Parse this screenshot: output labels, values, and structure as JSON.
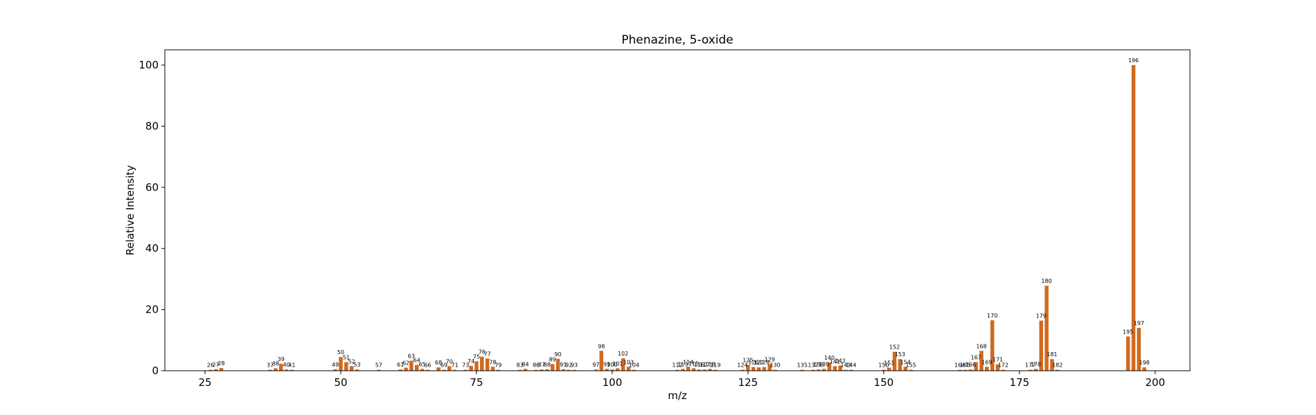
{
  "chart_data": {
    "type": "bar",
    "title": "Phenazine, 5-oxide",
    "xlabel": "m/z",
    "ylabel": "Relative Intensity",
    "xlim": [
      17.6,
      206.4
    ],
    "ylim": [
      0,
      105
    ],
    "xticks": [
      25,
      50,
      75,
      100,
      125,
      150,
      175,
      200
    ],
    "yticks": [
      0,
      20,
      40,
      60,
      80,
      100
    ],
    "bar_color": "#d2691e",
    "peaks": [
      {
        "mz": 26,
        "intensity": 0.3
      },
      {
        "mz": 27,
        "intensity": 0.5
      },
      {
        "mz": 28,
        "intensity": 0.9
      },
      {
        "mz": 37,
        "intensity": 0.3
      },
      {
        "mz": 38,
        "intensity": 0.8
      },
      {
        "mz": 39,
        "intensity": 2.3
      },
      {
        "mz": 40,
        "intensity": 0.4
      },
      {
        "mz": 41,
        "intensity": 0.3
      },
      {
        "mz": 49,
        "intensity": 0.5
      },
      {
        "mz": 50,
        "intensity": 4.5
      },
      {
        "mz": 51,
        "intensity": 2.8
      },
      {
        "mz": 52,
        "intensity": 1.5
      },
      {
        "mz": 53,
        "intensity": 0.4
      },
      {
        "mz": 57,
        "intensity": 0.3
      },
      {
        "mz": 61,
        "intensity": 0.4
      },
      {
        "mz": 62,
        "intensity": 1.0
      },
      {
        "mz": 63,
        "intensity": 3.3
      },
      {
        "mz": 64,
        "intensity": 1.9
      },
      {
        "mz": 65,
        "intensity": 0.6
      },
      {
        "mz": 66,
        "intensity": 0.3
      },
      {
        "mz": 68,
        "intensity": 1.1
      },
      {
        "mz": 69,
        "intensity": 0.3
      },
      {
        "mz": 70,
        "intensity": 1.5
      },
      {
        "mz": 71,
        "intensity": 0.3
      },
      {
        "mz": 73,
        "intensity": 0.3
      },
      {
        "mz": 74,
        "intensity": 1.6
      },
      {
        "mz": 75,
        "intensity": 3.1
      },
      {
        "mz": 76,
        "intensity": 4.6
      },
      {
        "mz": 77,
        "intensity": 4.0
      },
      {
        "mz": 78,
        "intensity": 1.3
      },
      {
        "mz": 79,
        "intensity": 0.3
      },
      {
        "mz": 83,
        "intensity": 0.3
      },
      {
        "mz": 84,
        "intensity": 0.6
      },
      {
        "mz": 86,
        "intensity": 0.3
      },
      {
        "mz": 87,
        "intensity": 0.4
      },
      {
        "mz": 88,
        "intensity": 0.5
      },
      {
        "mz": 89,
        "intensity": 2.2
      },
      {
        "mz": 90,
        "intensity": 3.9
      },
      {
        "mz": 91,
        "intensity": 0.5
      },
      {
        "mz": 92,
        "intensity": 0.3
      },
      {
        "mz": 93,
        "intensity": 0.3
      },
      {
        "mz": 97,
        "intensity": 0.4
      },
      {
        "mz": 98,
        "intensity": 6.5
      },
      {
        "mz": 99,
        "intensity": 0.6
      },
      {
        "mz": 100,
        "intensity": 0.4
      },
      {
        "mz": 101,
        "intensity": 0.8
      },
      {
        "mz": 102,
        "intensity": 4.1
      },
      {
        "mz": 103,
        "intensity": 1.3
      },
      {
        "mz": 104,
        "intensity": 0.3
      },
      {
        "mz": 112,
        "intensity": 0.3
      },
      {
        "mz": 113,
        "intensity": 0.6
      },
      {
        "mz": 114,
        "intensity": 1.3
      },
      {
        "mz": 115,
        "intensity": 0.8
      },
      {
        "mz": 116,
        "intensity": 0.4
      },
      {
        "mz": 117,
        "intensity": 0.4
      },
      {
        "mz": 118,
        "intensity": 0.6
      },
      {
        "mz": 119,
        "intensity": 0.3
      },
      {
        "mz": 124,
        "intensity": 0.3
      },
      {
        "mz": 125,
        "intensity": 1.9
      },
      {
        "mz": 126,
        "intensity": 1.2
      },
      {
        "mz": 127,
        "intensity": 1.1
      },
      {
        "mz": 128,
        "intensity": 1.2
      },
      {
        "mz": 129,
        "intensity": 2.2
      },
      {
        "mz": 130,
        "intensity": 0.3
      },
      {
        "mz": 135,
        "intensity": 0.3
      },
      {
        "mz": 137,
        "intensity": 0.3
      },
      {
        "mz": 138,
        "intensity": 0.4
      },
      {
        "mz": 139,
        "intensity": 0.6
      },
      {
        "mz": 140,
        "intensity": 2.7
      },
      {
        "mz": 141,
        "intensity": 1.5
      },
      {
        "mz": 142,
        "intensity": 1.7
      },
      {
        "mz": 143,
        "intensity": 0.3
      },
      {
        "mz": 144,
        "intensity": 0.3
      },
      {
        "mz": 150,
        "intensity": 0.3
      },
      {
        "mz": 151,
        "intensity": 1.0
      },
      {
        "mz": 152,
        "intensity": 6.2
      },
      {
        "mz": 153,
        "intensity": 3.8
      },
      {
        "mz": 154,
        "intensity": 1.3
      },
      {
        "mz": 155,
        "intensity": 0.3
      },
      {
        "mz": 164,
        "intensity": 0.3
      },
      {
        "mz": 165,
        "intensity": 0.3
      },
      {
        "mz": 166,
        "intensity": 0.4
      },
      {
        "mz": 167,
        "intensity": 2.8
      },
      {
        "mz": 168,
        "intensity": 6.5
      },
      {
        "mz": 169,
        "intensity": 1.3
      },
      {
        "mz": 170,
        "intensity": 16.5
      },
      {
        "mz": 171,
        "intensity": 2.1
      },
      {
        "mz": 172,
        "intensity": 0.3
      },
      {
        "mz": 177,
        "intensity": 0.3
      },
      {
        "mz": 178,
        "intensity": 0.6
      },
      {
        "mz": 179,
        "intensity": 16.4
      },
      {
        "mz": 180,
        "intensity": 27.8
      },
      {
        "mz": 181,
        "intensity": 3.8
      },
      {
        "mz": 182,
        "intensity": 0.3
      },
      {
        "mz": 195,
        "intensity": 11.2
      },
      {
        "mz": 196,
        "intensity": 100
      },
      {
        "mz": 197,
        "intensity": 14.0
      },
      {
        "mz": 198,
        "intensity": 1.1
      }
    ]
  }
}
